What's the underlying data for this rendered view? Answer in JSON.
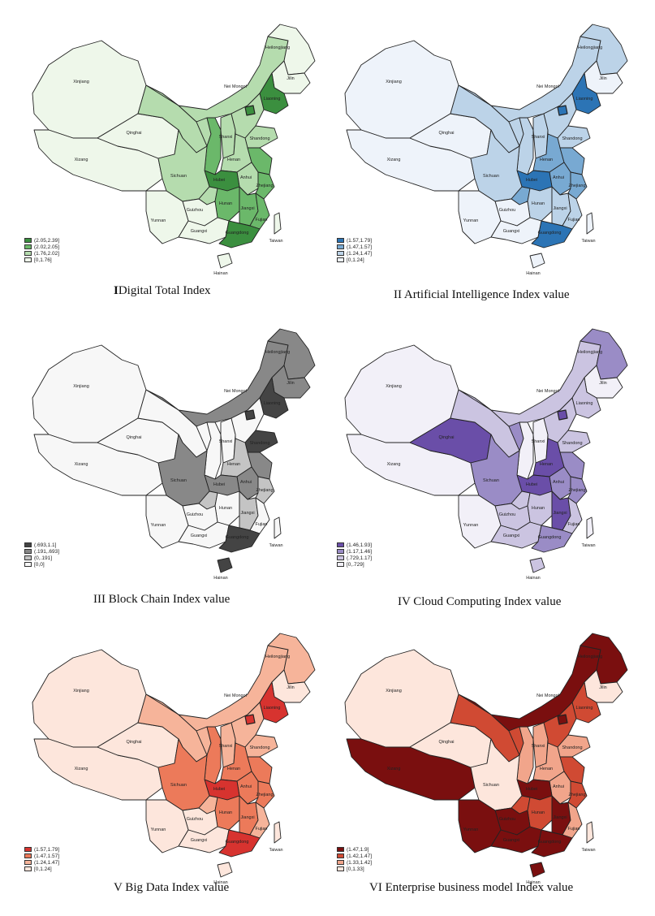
{
  "panels": [
    {
      "id": "p1",
      "title_prefix": "I",
      "title_rest": "Digital Total Index",
      "colors": [
        "#3b8f3f",
        "#6bb86a",
        "#b5dcae",
        "#eef7ea"
      ],
      "legend": [
        "(2.05,2.39]",
        "(2.02,2.05]",
        "(1.76,2.02]",
        "[0,1.76]"
      ],
      "fills": {
        "xinjiang": 3,
        "xizang": 3,
        "qinghai": 3,
        "neimongol": 2,
        "heilongjiang": 3,
        "jilin": 3,
        "liaoning": 0,
        "gansu": 2,
        "shaanxi": 1,
        "shanxi": 2,
        "hebei": 2,
        "shandong": 2,
        "henan": 2,
        "hubei": 0,
        "anhui": 2,
        "jiangsu": 1,
        "zhejiang": 1,
        "sichuan": 2,
        "chongqing": 2,
        "guizhou": 3,
        "yunnan": 3,
        "guangxi": 3,
        "guangdong": 0,
        "hunan": 1,
        "jiangxi": 1,
        "fujian": 1,
        "hainan": 3,
        "taiwan": 3,
        "ningxia": 2,
        "beijing": 0
      }
    },
    {
      "id": "p2",
      "title_prefix": "II",
      "title_rest": " Artificial Intelligence Index value",
      "colors": [
        "#2c74b5",
        "#78a9d2",
        "#bcd3e8",
        "#eef3fa"
      ],
      "legend": [
        "(1.57,1.79]",
        "(1.47,1.57]",
        "(1.24,1.47]",
        "[0,1.24]"
      ],
      "fills": {
        "xinjiang": 3,
        "xizang": 3,
        "qinghai": 3,
        "neimongol": 2,
        "heilongjiang": 2,
        "jilin": 3,
        "liaoning": 0,
        "gansu": 2,
        "shaanxi": 2,
        "shanxi": 2,
        "hebei": 2,
        "shandong": 2,
        "henan": 1,
        "hubei": 0,
        "anhui": 1,
        "jiangsu": 1,
        "zhejiang": 1,
        "sichuan": 2,
        "chongqing": 1,
        "guizhou": 3,
        "yunnan": 3,
        "guangxi": 3,
        "guangdong": 0,
        "hunan": 2,
        "jiangxi": 2,
        "fujian": 2,
        "hainan": 3,
        "taiwan": 3,
        "ningxia": 2,
        "beijing": 0
      }
    },
    {
      "id": "p3",
      "title_prefix": "",
      "title_rest": "III Block Chain Index value",
      "colors": [
        "#444444",
        "#888888",
        "#c4c4c4",
        "#f7f7f7"
      ],
      "legend": [
        "(.693,1.1]",
        "(.191,.693]",
        "(0,.191]",
        "[0,0]"
      ],
      "fills": {
        "xinjiang": 3,
        "xizang": 3,
        "qinghai": 3,
        "neimongol": 1,
        "heilongjiang": 1,
        "jilin": 1,
        "liaoning": 0,
        "gansu": 3,
        "shaanxi": 3,
        "shanxi": 3,
        "hebei": 3,
        "shandong": 0,
        "henan": 2,
        "hubei": 1,
        "anhui": 1,
        "jiangsu": 1,
        "zhejiang": 2,
        "sichuan": 1,
        "chongqing": 2,
        "guizhou": 3,
        "yunnan": 3,
        "guangxi": 3,
        "guangdong": 0,
        "hunan": 3,
        "jiangxi": 2,
        "fujian": 3,
        "hainan": 0,
        "taiwan": 3,
        "ningxia": 3,
        "beijing": 0
      }
    },
    {
      "id": "p4",
      "title_prefix": "",
      "title_rest": "IV Cloud Computing Index value",
      "colors": [
        "#6a4ea8",
        "#9a8cc6",
        "#cbc4e1",
        "#f2f0f8"
      ],
      "legend": [
        "(1.46,1.93]",
        "(1.17,1.46]",
        "(.729,1.17]",
        "[0,.729]"
      ],
      "fills": {
        "xinjiang": 3,
        "xizang": 3,
        "qinghai": 0,
        "neimongol": 2,
        "heilongjiang": 1,
        "jilin": 3,
        "liaoning": 2,
        "gansu": 2,
        "shaanxi": 3,
        "shanxi": 3,
        "hebei": 2,
        "shandong": 2,
        "henan": 0,
        "hubei": 0,
        "anhui": 1,
        "jiangsu": 1,
        "zhejiang": 1,
        "sichuan": 1,
        "chongqing": 2,
        "guizhou": 2,
        "yunnan": 3,
        "guangxi": 2,
        "guangdong": 1,
        "hunan": 2,
        "jiangxi": 0,
        "fujian": 2,
        "hainan": 2,
        "taiwan": 3,
        "ningxia": 1,
        "beijing": 0
      }
    },
    {
      "id": "p5",
      "title_prefix": "",
      "title_rest": "V Big Data Index value",
      "colors": [
        "#d7332f",
        "#ec7a5a",
        "#f6b49a",
        "#fde6dc"
      ],
      "legend": [
        "(1.57,1.79]",
        "(1.47,1.57]",
        "(1.24,1.47]",
        "[0,1.24]"
      ],
      "fills": {
        "xinjiang": 3,
        "xizang": 3,
        "qinghai": 3,
        "neimongol": 2,
        "heilongjiang": 2,
        "jilin": 3,
        "liaoning": 0,
        "gansu": 2,
        "shaanxi": 1,
        "shanxi": 2,
        "hebei": 2,
        "shandong": 2,
        "henan": 1,
        "hubei": 0,
        "anhui": 1,
        "jiangsu": 1,
        "zhejiang": 1,
        "sichuan": 1,
        "chongqing": 2,
        "guizhou": 3,
        "yunnan": 3,
        "guangxi": 3,
        "guangdong": 0,
        "hunan": 1,
        "jiangxi": 1,
        "fujian": 2,
        "hainan": 3,
        "taiwan": 3,
        "ningxia": 2,
        "beijing": 0
      }
    },
    {
      "id": "p6",
      "title_prefix": "",
      "title_rest": "VI Enterprise business model Index value",
      "colors": [
        "#7a0f0f",
        "#d04a33",
        "#f1a58b",
        "#fde6dc"
      ],
      "legend": [
        "(1.47,1.9]",
        "(1.42,1.47]",
        "(1.33,1.42]",
        "[0,1.33]"
      ],
      "fills": {
        "xinjiang": 3,
        "xizang": 0,
        "qinghai": 3,
        "neimongol": 0,
        "heilongjiang": 0,
        "jilin": 3,
        "liaoning": 1,
        "gansu": 1,
        "shaanxi": 2,
        "shanxi": 2,
        "hebei": 1,
        "shandong": 2,
        "henan": 2,
        "hubei": 0,
        "anhui": 2,
        "jiangsu": 1,
        "zhejiang": 1,
        "sichuan": 3,
        "chongqing": 1,
        "guizhou": 0,
        "yunnan": 0,
        "guangxi": 0,
        "guangdong": 0,
        "hunan": 1,
        "jiangxi": 0,
        "fujian": 2,
        "hainan": 0,
        "taiwan": 3,
        "ningxia": 1,
        "beijing": 0
      }
    }
  ],
  "labels": {
    "xinjiang": "Xinjiang",
    "xizang": "Xizang",
    "qinghai": "Qinghai",
    "neimongol": "Nei Mongol",
    "heilongjiang": "Heilongjiang",
    "jilin": "Jilin",
    "liaoning": "Liaoning",
    "shanxi": "Shanxi",
    "shandong": "Shandong",
    "henan": "Henan",
    "hubei": "Hubei",
    "anhui": "Anhui",
    "zhejiang": "Zhejiang",
    "sichuan": "Sichuan",
    "guizhou": "Guizhou",
    "yunnan": "Yunnan",
    "guangxi": "Guangxi",
    "guangdong": "Guangdong",
    "hunan": "Hunan",
    "jiangxi": "Jiangxi",
    "fujian": "Fujian",
    "hainan": "Hainan",
    "taiwan": "Taiwan"
  }
}
